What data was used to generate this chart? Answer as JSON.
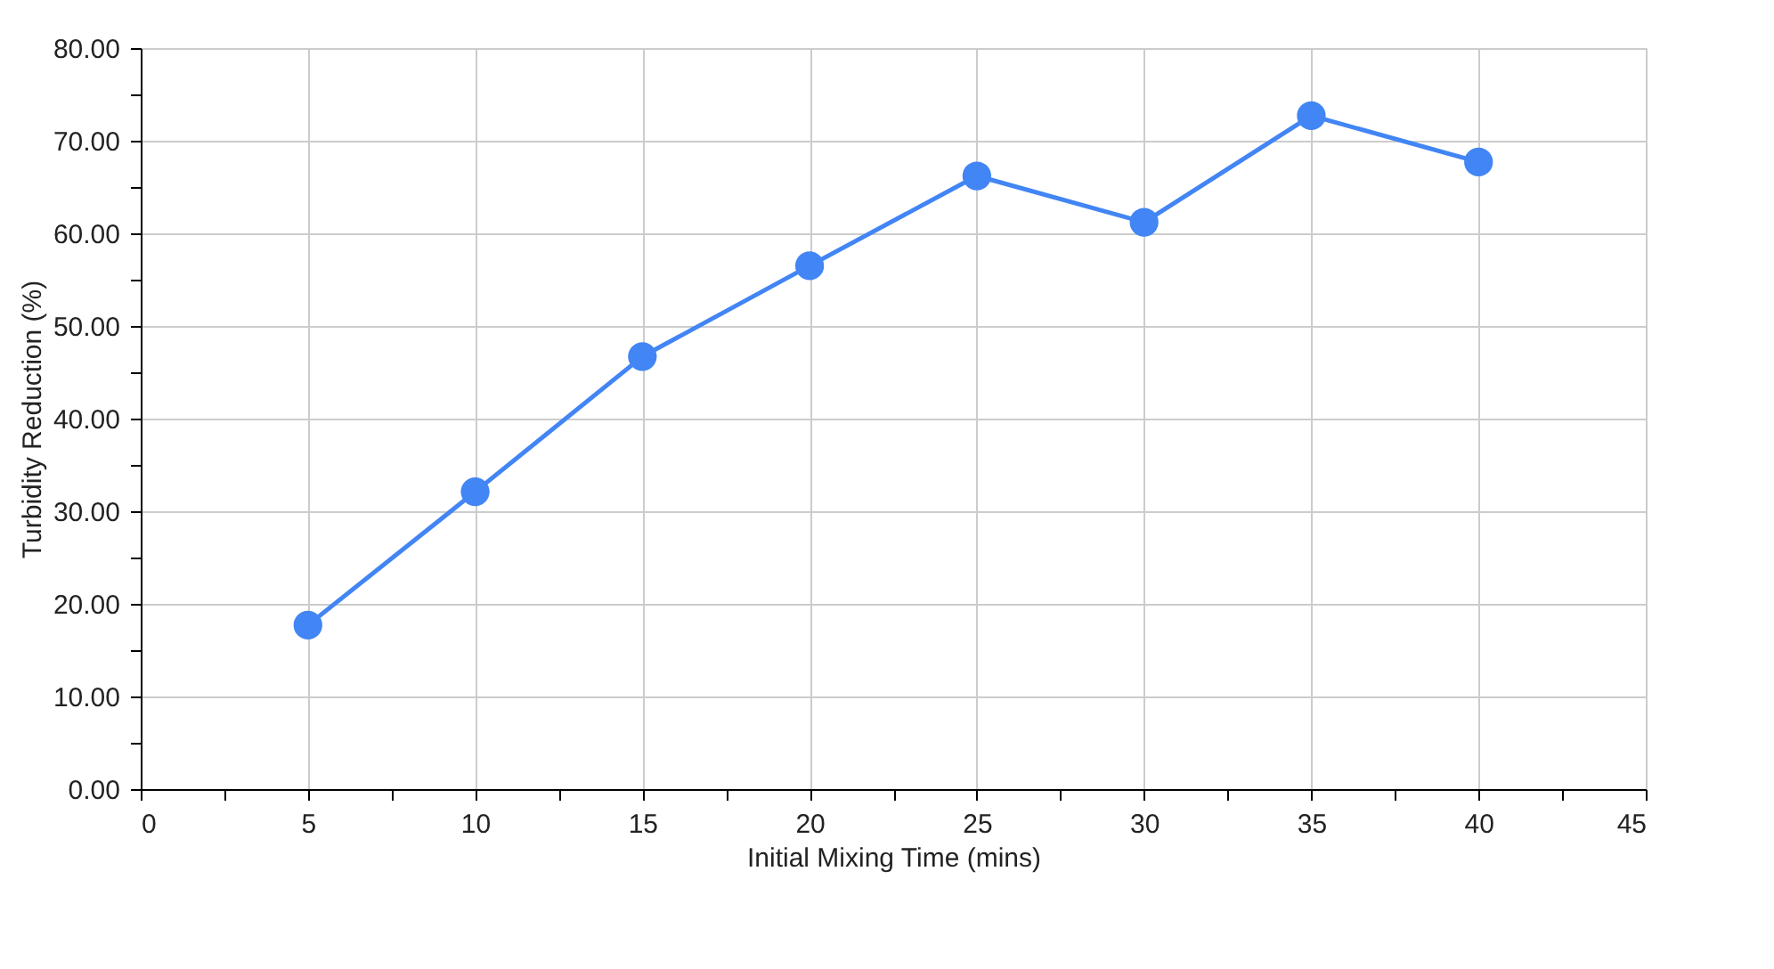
{
  "chart_data": {
    "type": "line",
    "xlabel": "Initial Mixing Time (mins)",
    "ylabel": "Turbidity Reduction (%)",
    "x": [
      5,
      10,
      15,
      20,
      25,
      30,
      35,
      40
    ],
    "series": [
      {
        "color": "#4285f4",
        "values": [
          17.7,
          32.1,
          46.7,
          56.5,
          66.2,
          61.2,
          72.7,
          67.7
        ]
      }
    ],
    "xlim": [
      0,
      45
    ],
    "xticks": [
      0,
      {
        "value": 2.5,
        "label": null
      },
      5,
      {
        "value": 7.5,
        "label": null
      },
      10,
      {
        "value": 12.5,
        "label": null
      },
      15,
      {
        "value": 17.5,
        "label": null
      },
      20,
      {
        "value": 22.5,
        "label": null
      },
      25,
      {
        "value": 27.5,
        "label": null
      },
      30,
      {
        "value": 32.5,
        "label": null
      },
      35,
      {
        "value": 37.5,
        "label": null
      },
      40,
      {
        "value": 42.5,
        "label": null
      },
      45
    ],
    "ylim": [
      0,
      80
    ],
    "yticks": [
      {
        "value": 0,
        "label": "0.00"
      },
      {
        "value": 5,
        "label": null
      },
      {
        "value": 10,
        "label": "10.00"
      },
      {
        "value": 15,
        "label": null
      },
      {
        "value": 20,
        "label": "20.00"
      },
      {
        "value": 25,
        "label": null
      },
      {
        "value": 30,
        "label": "30.00"
      },
      {
        "value": 35,
        "label": null
      },
      {
        "value": 40,
        "label": "40.00"
      },
      {
        "value": 45,
        "label": null
      },
      {
        "value": 50,
        "label": "50.00"
      },
      {
        "value": 55,
        "label": null
      },
      {
        "value": 60,
        "label": "60.00"
      },
      {
        "value": 65,
        "label": null
      },
      {
        "value": 70,
        "label": "70.00"
      },
      {
        "value": 75,
        "label": null
      },
      {
        "value": 80,
        "label": "80.00"
      }
    ],
    "grid": true,
    "marker": "circle",
    "line_style": "solid"
  }
}
